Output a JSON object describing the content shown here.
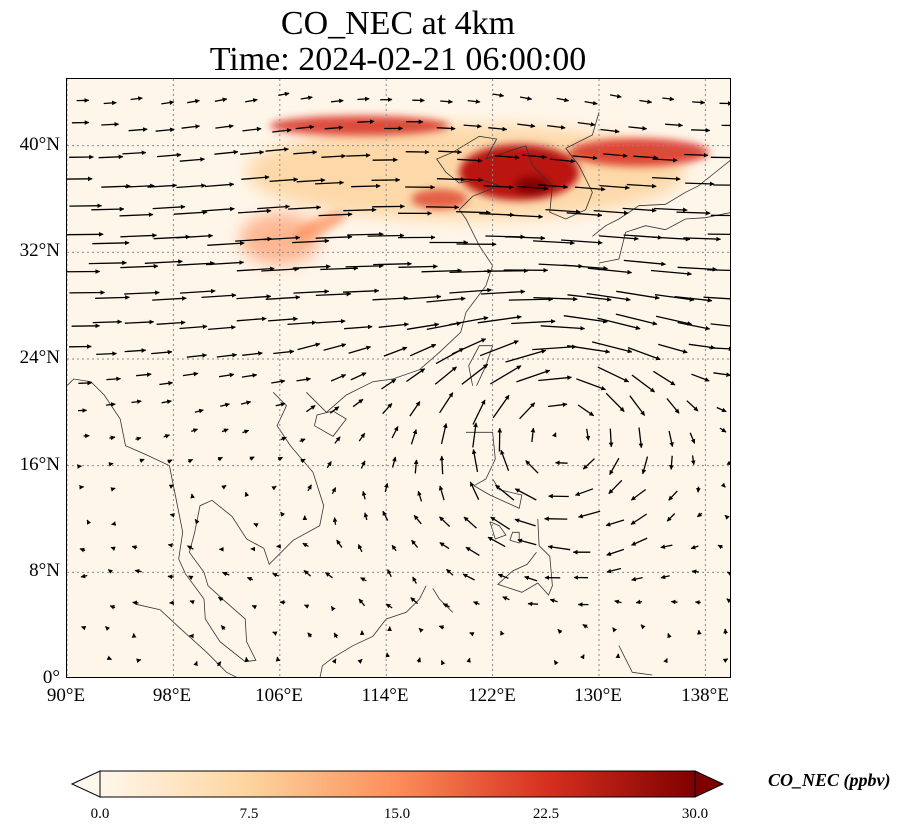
{
  "title": {
    "line1": "CO_NEC at 4km",
    "line2": "Time: 2024-02-21 06:00:00"
  },
  "map": {
    "projection": "PlateCarree",
    "lon_range": [
      90,
      140
    ],
    "lat_range": [
      0,
      45
    ],
    "gridlines": "dotted",
    "lon_ticks": [
      "90°E",
      "98°E",
      "106°E",
      "114°E",
      "122°E",
      "130°E",
      "138°E"
    ],
    "lat_ticks": [
      "0°",
      "8°N",
      "16°N",
      "24°N",
      "32°N",
      "40°N"
    ],
    "wind_vectors": true,
    "coastlines": true,
    "features": [
      {
        "name": "CO plume north",
        "lon_range": [
          103,
          140
        ],
        "lat_range": [
          33,
          43
        ],
        "max_ppbv": 30
      },
      {
        "name": "anticyclone",
        "lon_center": 127,
        "lat_center": 19
      }
    ]
  },
  "colorbar": {
    "cmap": "OrRd",
    "min": 0.0,
    "max": 30.0,
    "ticks": [
      "0.0",
      "7.5",
      "15.0",
      "22.5",
      "30.0"
    ],
    "label": "CO_NEC (ppbv)",
    "colors": [
      "#fff7ec",
      "#fdd49e",
      "#fc8d59",
      "#d7301f",
      "#7f0000"
    ]
  }
}
